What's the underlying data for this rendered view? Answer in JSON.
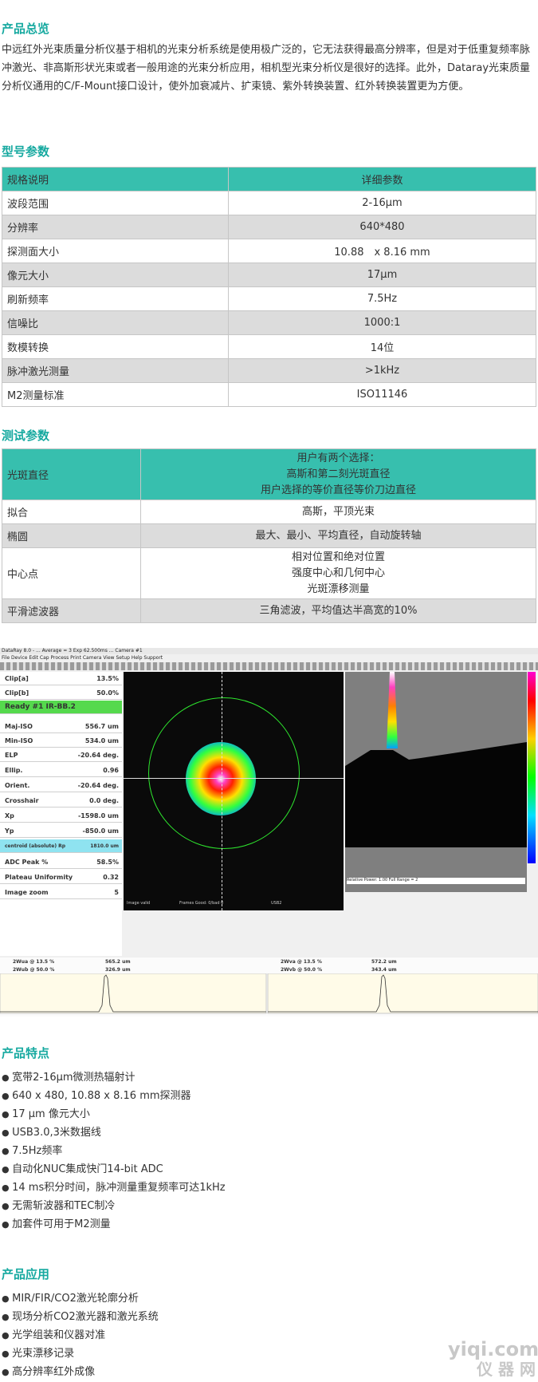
{
  "overview": {
    "title": "产品总览",
    "text": "中远红外光束质量分析仪基于相机的光束分析系统是使用极广泛的，它无法获得最高分辨率，但是对于低重复频率脉冲激光、非高斯形状光束或者一般用途的光束分析应用，相机型光束分析仪是很好的选择。此外，Dataray光束质量分析仪通用的C/F-Mount接口设计，使外加衰减片、扩束镜、紫外转换装置、红外转换装置更为方便。"
  },
  "model": {
    "title": "型号参数",
    "header": [
      "规格说明",
      "详细参数"
    ],
    "rows": [
      [
        "波段范围",
        "2-16μm"
      ],
      [
        "分辨率",
        "640*480"
      ],
      [
        "探测面大小",
        "10.88　x 8.16 mm"
      ],
      [
        "像元大小",
        "17μm"
      ],
      [
        "刷新频率",
        "7.5Hz"
      ],
      [
        "信噪比",
        "1000:1"
      ],
      [
        "数模转换",
        "14位"
      ],
      [
        "脉冲激光测量",
        ">1kHz"
      ],
      [
        "M2测量标准",
        "ISO11146"
      ]
    ]
  },
  "test": {
    "title": "测试参数",
    "rows": [
      {
        "k": "光斑直径",
        "v": [
          "用户有两个选择：",
          "高斯和第二刻光斑直径",
          "用户选择的等价直径等价刀边直径"
        ]
      },
      {
        "k": "拟合",
        "v": [
          "高斯，平顶光束"
        ]
      },
      {
        "k": "椭圆",
        "v": [
          "最大、最小、平均直径，自动旋转轴"
        ]
      },
      {
        "k": "中心点",
        "v": [
          "相对位置和绝对位置",
          "强度中心和几何中心",
          "光斑漂移测量"
        ]
      },
      {
        "k": "平滑滤波器",
        "v": [
          "三角滤波，平均值达半高宽的10%"
        ]
      }
    ]
  },
  "screenshot": {
    "titlebar": "DataRay 8.0 - ... Average = 3  Exp 62.500ms ... Camera #1",
    "menubar": "File  Device  Edit Cap  Process  Print  Camera  View  Setup  Help  Support",
    "panel": [
      {
        "label": "Clip[a]",
        "value": "13.5%"
      },
      {
        "label": "Clip[b]",
        "value": "50.0%"
      },
      {
        "label": "Ready    #1 IR-BB.2",
        "value": ""
      },
      {
        "label": "Maj-ISO",
        "value": "556.7 um"
      },
      {
        "label": "Min-ISO",
        "value": "534.0 um"
      },
      {
        "label": "ELP",
        "value": "-20.64 deg."
      },
      {
        "label": "Ellip.",
        "value": "0.96"
      },
      {
        "label": "Orient.",
        "value": "-20.64 deg."
      },
      {
        "label": "Crosshair",
        "value": "0.0 deg."
      },
      {
        "label": "Xp",
        "value": "-1598.0 um"
      },
      {
        "label": "Yp",
        "value": "-850.0 um"
      },
      {
        "label": "centroid (absolute)   Rp",
        "value": "1810.0 um"
      },
      {
        "label": "ADC Peak %",
        "value": "58.5%"
      },
      {
        "label": "Plateau Uniformity",
        "value": "0.32"
      },
      {
        "label": "Image zoom",
        "value": "5"
      }
    ],
    "wu": [
      [
        "2Wua @ 13.5 %",
        "565.2 um"
      ],
      [
        "2Wub @ 50.0 %",
        "326.9 um"
      ]
    ],
    "wv": [
      [
        "2Wva @ 13.5 %",
        "572.2 um"
      ],
      [
        "2Wvb @ 50.0 %",
        "343.4 um"
      ]
    ],
    "status_left": "Image valid",
    "status_mid": "Frames Good: 0/bad 0",
    "status_r": "USB2",
    "status_3d": "Relative Power: 1.00      Full Range = 2"
  },
  "features": {
    "title": "产品特点",
    "items": [
      "宽带2-16μm微测热辐射计",
      "640 x 480, 10.88 x 8.16 mm探测器",
      "17 μm 像元大小",
      "USB3.0,3米数据线",
      "7.5Hz频率",
      "自动化NUC集成快门14-bit ADC",
      "14 ms积分时间，脉冲测量重复频率可达1kHz",
      "无需斩波器和TEC制冷",
      "加套件可用于M2测量"
    ]
  },
  "applications": {
    "title": "产品应用",
    "items": [
      "MIR/FIR/CO2激光轮廓分析",
      "现场分析CO2激光器和激光系统",
      "光学组装和仪器对准",
      "光束漂移记录",
      "高分辨率红外成像"
    ]
  },
  "watermark": {
    "line1": "yiqi.com",
    "line2": "仪 器 网"
  }
}
